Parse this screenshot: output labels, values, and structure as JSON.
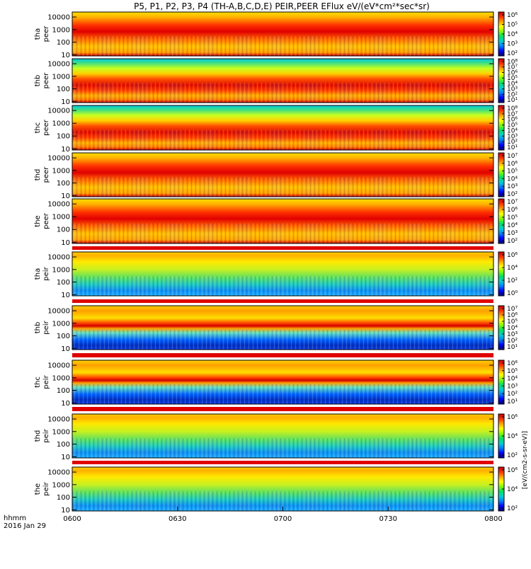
{
  "chart_data": {
    "type": "heatmap",
    "title": "P5, P1, P2, P3, P4 (TH-A,B,C,D,E) PEIR,PEER EFlux eV/(eV*cm²*sec*sr)",
    "x_ticks": [
      "0600",
      "0630",
      "0700",
      "0730",
      "0800"
    ],
    "x_label_lines": [
      "hhmm",
      "2016 Jan 29"
    ],
    "xlim": [
      "0600",
      "0800"
    ],
    "y_scale": "log",
    "ylim": [
      8,
      25000
    ],
    "y_ticks": [
      "10000",
      "1000",
      "100",
      "10"
    ],
    "colorbar_label": "[eV/(cm2-s-sr-eV)]",
    "colorbar_scale": "log",
    "colormap": "rainbow",
    "colormap_colors": [
      "#000080",
      "#0000ff",
      "#0080ff",
      "#00d0d0",
      "#00e060",
      "#80ff00",
      "#ffff00",
      "#ffa000",
      "#ff3000",
      "#d00000"
    ],
    "panels": [
      {
        "probe": "tha",
        "species": "peer",
        "cb_ticks": [
          "10⁶",
          "10⁵",
          "10⁴",
          "10³",
          "10²"
        ]
      },
      {
        "probe": "thb",
        "species": "peer",
        "cb_ticks": [
          "10⁸",
          "10⁷",
          "10⁶",
          "10⁵",
          "10⁴",
          "10³",
          "10²",
          "10¹"
        ]
      },
      {
        "probe": "thc",
        "species": "peer",
        "cb_ticks": [
          "10⁸",
          "10⁷",
          "10⁶",
          "10⁵",
          "10⁴",
          "10³",
          "10²",
          "10¹"
        ]
      },
      {
        "probe": "thd",
        "species": "peer",
        "cb_ticks": [
          "10⁷",
          "10⁶",
          "10⁵",
          "10⁴",
          "10³",
          "10²"
        ]
      },
      {
        "probe": "the",
        "species": "peer",
        "cb_ticks": [
          "10⁷",
          "10⁶",
          "10⁵",
          "10⁴",
          "10³",
          "10²"
        ]
      },
      {
        "probe": "tha",
        "species": "peir",
        "cb_ticks": [
          "10⁶",
          "10⁴",
          "10²",
          "10⁰"
        ]
      },
      {
        "probe": "thb",
        "species": "peir",
        "cb_ticks": [
          "10⁷",
          "10⁶",
          "10⁵",
          "10⁴",
          "10³",
          "10²",
          "10¹"
        ]
      },
      {
        "probe": "thc",
        "species": "peir",
        "cb_ticks": [
          "10⁶",
          "10⁵",
          "10⁴",
          "10³",
          "10²",
          "10¹"
        ]
      },
      {
        "probe": "thd",
        "species": "peir",
        "cb_ticks": [
          "10⁶",
          "10⁴",
          "10²"
        ]
      },
      {
        "probe": "the",
        "species": "peir",
        "cb_ticks": [
          "10⁶",
          "10⁴",
          "10²"
        ]
      }
    ]
  }
}
